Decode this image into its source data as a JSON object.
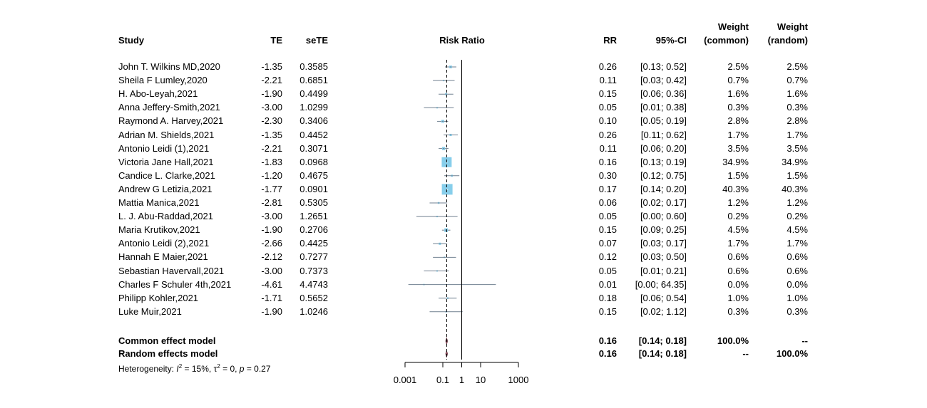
{
  "chart_data": {
    "type": "forest",
    "title": "Risk Ratio",
    "headers": {
      "study": "Study",
      "te": "TE",
      "sete": "seTE",
      "plot": "Risk Ratio",
      "rr": "RR",
      "ci": "95%-CI",
      "wc_line1": "Weight",
      "wc_line2": "(common)",
      "wr_line1": "Weight",
      "wr_line2": "(random)"
    },
    "x_scale": "log10",
    "xlim": [
      0.001,
      1000
    ],
    "ticks": [
      0.001,
      0.1,
      1,
      10,
      1000
    ],
    "tick_labels": [
      "0.001",
      "0.1",
      "1",
      "10",
      "1000"
    ],
    "studies": [
      {
        "name": "John T. Wilkins MD,2020",
        "te": "-1.35",
        "sete": "0.3585",
        "rr": "0.26",
        "ci": "[0.13;  0.52]",
        "w_common": "2.5%",
        "w_random": "2.5%",
        "rr_val": 0.26,
        "lo": 0.13,
        "hi": 0.52,
        "wc": 2.5
      },
      {
        "name": "Sheila F Lumley,2020",
        "te": "-2.21",
        "sete": "0.6851",
        "rr": "0.11",
        "ci": "[0.03;  0.42]",
        "w_common": "0.7%",
        "w_random": "0.7%",
        "rr_val": 0.11,
        "lo": 0.03,
        "hi": 0.42,
        "wc": 0.7
      },
      {
        "name": "H. Abo-Leyah,2021",
        "te": "-1.90",
        "sete": "0.4499",
        "rr": "0.15",
        "ci": "[0.06;  0.36]",
        "w_common": "1.6%",
        "w_random": "1.6%",
        "rr_val": 0.15,
        "lo": 0.06,
        "hi": 0.36,
        "wc": 1.6
      },
      {
        "name": "Anna Jeffery-Smith,2021",
        "te": "-3.00",
        "sete": "1.0299",
        "rr": "0.05",
        "ci": "[0.01;  0.38]",
        "w_common": "0.3%",
        "w_random": "0.3%",
        "rr_val": 0.05,
        "lo": 0.01,
        "hi": 0.38,
        "wc": 0.3
      },
      {
        "name": "Raymond A. Harvey,2021",
        "te": "-2.30",
        "sete": "0.3406",
        "rr": "0.10",
        "ci": "[0.05;  0.19]",
        "w_common": "2.8%",
        "w_random": "2.8%",
        "rr_val": 0.1,
        "lo": 0.05,
        "hi": 0.19,
        "wc": 2.8
      },
      {
        "name": "Adrian M. Shields,2021",
        "te": "-1.35",
        "sete": "0.4452",
        "rr": "0.26",
        "ci": "[0.11;  0.62]",
        "w_common": "1.7%",
        "w_random": "1.7%",
        "rr_val": 0.26,
        "lo": 0.11,
        "hi": 0.62,
        "wc": 1.7
      },
      {
        "name": "Antonio Leidi (1),2021",
        "te": "-2.21",
        "sete": "0.3071",
        "rr": "0.11",
        "ci": "[0.06;  0.20]",
        "w_common": "3.5%",
        "w_random": "3.5%",
        "rr_val": 0.11,
        "lo": 0.06,
        "hi": 0.2,
        "wc": 3.5
      },
      {
        "name": "Victoria Jane Hall,2021",
        "te": "-1.83",
        "sete": "0.0968",
        "rr": "0.16",
        "ci": "[0.13;  0.19]",
        "w_common": "34.9%",
        "w_random": "34.9%",
        "rr_val": 0.16,
        "lo": 0.13,
        "hi": 0.19,
        "wc": 34.9
      },
      {
        "name": "Candice L. Clarke,2021",
        "te": "-1.20",
        "sete": "0.4675",
        "rr": "0.30",
        "ci": "[0.12;  0.75]",
        "w_common": "1.5%",
        "w_random": "1.5%",
        "rr_val": 0.3,
        "lo": 0.12,
        "hi": 0.75,
        "wc": 1.5
      },
      {
        "name": "Andrew G Letizia,2021",
        "te": "-1.77",
        "sete": "0.0901",
        "rr": "0.17",
        "ci": "[0.14;  0.20]",
        "w_common": "40.3%",
        "w_random": "40.3%",
        "rr_val": 0.17,
        "lo": 0.14,
        "hi": 0.2,
        "wc": 40.3
      },
      {
        "name": "Mattia Manica,2021",
        "te": "-2.81",
        "sete": "0.5305",
        "rr": "0.06",
        "ci": "[0.02;  0.17]",
        "w_common": "1.2%",
        "w_random": "1.2%",
        "rr_val": 0.06,
        "lo": 0.02,
        "hi": 0.17,
        "wc": 1.2
      },
      {
        "name": "L. J. Abu-Raddad,2021",
        "te": "-3.00",
        "sete": "1.2651",
        "rr": "0.05",
        "ci": "[0.00;  0.60]",
        "w_common": "0.2%",
        "w_random": "0.2%",
        "rr_val": 0.05,
        "lo": 0.004,
        "hi": 0.6,
        "wc": 0.2
      },
      {
        "name": "Maria Krutikov,2021",
        "te": "-1.90",
        "sete": "0.2706",
        "rr": "0.15",
        "ci": "[0.09;  0.25]",
        "w_common": "4.5%",
        "w_random": "4.5%",
        "rr_val": 0.15,
        "lo": 0.09,
        "hi": 0.25,
        "wc": 4.5
      },
      {
        "name": "Antonio Leidi (2),2021",
        "te": "-2.66",
        "sete": "0.4425",
        "rr": "0.07",
        "ci": "[0.03;  0.17]",
        "w_common": "1.7%",
        "w_random": "1.7%",
        "rr_val": 0.07,
        "lo": 0.03,
        "hi": 0.17,
        "wc": 1.7
      },
      {
        "name": "Hannah E Maier,2021",
        "te": "-2.12",
        "sete": "0.7277",
        "rr": "0.12",
        "ci": "[0.03;  0.50]",
        "w_common": "0.6%",
        "w_random": "0.6%",
        "rr_val": 0.12,
        "lo": 0.03,
        "hi": 0.5,
        "wc": 0.6
      },
      {
        "name": "Sebastian Havervall,2021",
        "te": "-3.00",
        "sete": "0.7373",
        "rr": "0.05",
        "ci": "[0.01;  0.21]",
        "w_common": "0.6%",
        "w_random": "0.6%",
        "rr_val": 0.05,
        "lo": 0.01,
        "hi": 0.21,
        "wc": 0.6
      },
      {
        "name": "Charles F Schuler 4th,2021",
        "te": "-4.61",
        "sete": "4.4743",
        "rr": "0.01",
        "ci": "[0.00; 64.35]",
        "w_common": "0.0%",
        "w_random": "0.0%",
        "rr_val": 0.01,
        "lo": 0.0015,
        "hi": 64.35,
        "wc": 0.0
      },
      {
        "name": "Philipp Kohler,2021",
        "te": "-1.71",
        "sete": "0.5652",
        "rr": "0.18",
        "ci": "[0.06;  0.54]",
        "w_common": "1.0%",
        "w_random": "1.0%",
        "rr_val": 0.18,
        "lo": 0.06,
        "hi": 0.54,
        "wc": 1.0
      },
      {
        "name": "Luke Muir,2021",
        "te": "-1.90",
        "sete": "1.0246",
        "rr": "0.15",
        "ci": "[0.02;  1.12]",
        "w_common": "0.3%",
        "w_random": "0.3%",
        "rr_val": 0.15,
        "lo": 0.02,
        "hi": 1.12,
        "wc": 0.3
      }
    ],
    "pooled": [
      {
        "name": "Common effect model",
        "rr": "0.16",
        "ci": "[0.14;  0.18]",
        "w_common": "100.0%",
        "w_random": "--",
        "rr_val": 0.16,
        "lo": 0.14,
        "hi": 0.18
      },
      {
        "name": "Random effects model",
        "rr": "0.16",
        "ci": "[0.14;  0.18]",
        "w_common": "--",
        "w_random": "100.0%",
        "rr_val": 0.16,
        "lo": 0.14,
        "hi": 0.18
      }
    ],
    "heterogeneity": {
      "label": "Heterogeneity: ",
      "i2_symbol": "I",
      "i2_sup": "2",
      "i2_value": " = 15%, ",
      "tau_symbol": "τ",
      "tau_sup": "2",
      "tau_value": " = 0, ",
      "p_symbol": "p",
      "p_value": " = 0.27"
    },
    "colors": {
      "square": "#87CEEB",
      "ci_line": "#708090",
      "diamond": "#8B4A5A",
      "axis": "#000000",
      "ref_line": "#000000"
    }
  }
}
